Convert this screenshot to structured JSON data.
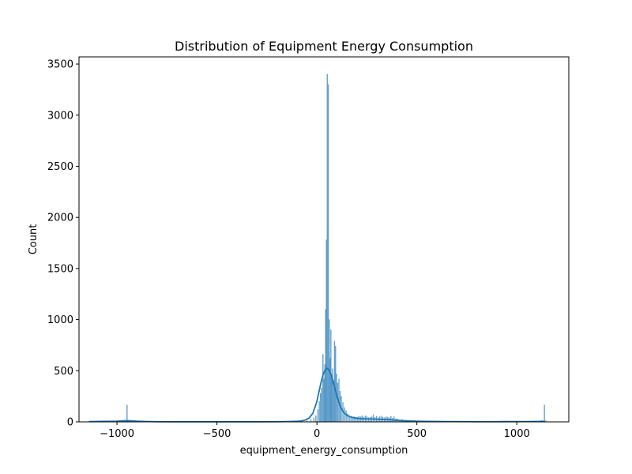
{
  "chart_data": {
    "type": "bar",
    "title": "Distribution of Equipment Energy Consumption",
    "xlabel": "equipment_energy_consumption",
    "ylabel": "Count",
    "xlim": [
      -1190,
      1260
    ],
    "ylim": [
      0,
      3570
    ],
    "x_ticks": [
      -1000,
      -500,
      0,
      500,
      1000
    ],
    "x_tick_labels": [
      "−1000",
      "−500",
      "0",
      "500",
      "1000"
    ],
    "y_ticks": [
      0,
      500,
      1000,
      1500,
      2000,
      2500,
      3000,
      3500
    ],
    "y_tick_labels": [
      "0",
      "500",
      "1000",
      "1500",
      "2000",
      "2500",
      "3000",
      "3500"
    ],
    "grid": false,
    "bin_width": 3.5,
    "colors": {
      "bars": "#1f77b4",
      "kde": "#1f77b4"
    },
    "bars": [
      {
        "x": -1140,
        "count": 3
      },
      {
        "x": -1100,
        "count": 2
      },
      {
        "x": -1060,
        "count": 3
      },
      {
        "x": -1020,
        "count": 4
      },
      {
        "x": -990,
        "count": 6
      },
      {
        "x": -970,
        "count": 10
      },
      {
        "x": -955,
        "count": 15
      },
      {
        "x": -950,
        "count": 165
      },
      {
        "x": -940,
        "count": 14
      },
      {
        "x": -930,
        "count": 10
      },
      {
        "x": -920,
        "count": 8
      },
      {
        "x": -905,
        "count": 6
      },
      {
        "x": -880,
        "count": 3
      },
      {
        "x": -850,
        "count": 2
      },
      {
        "x": -800,
        "count": 2
      },
      {
        "x": -700,
        "count": 1
      },
      {
        "x": -600,
        "count": 1
      },
      {
        "x": -500,
        "count": 1
      },
      {
        "x": -400,
        "count": 1
      },
      {
        "x": -300,
        "count": 1
      },
      {
        "x": -200,
        "count": 2
      },
      {
        "x": -120,
        "count": 3
      },
      {
        "x": -80,
        "count": 5
      },
      {
        "x": -50,
        "count": 10
      },
      {
        "x": -30,
        "count": 25
      },
      {
        "x": -15,
        "count": 40
      },
      {
        "x": -5,
        "count": 60
      },
      {
        "x": 5,
        "count": 120
      },
      {
        "x": 12,
        "count": 200
      },
      {
        "x": 18,
        "count": 280
      },
      {
        "x": 24,
        "count": 330
      },
      {
        "x": 30,
        "count": 660
      },
      {
        "x": 36,
        "count": 420
      },
      {
        "x": 40,
        "count": 560
      },
      {
        "x": 44,
        "count": 1100
      },
      {
        "x": 48,
        "count": 1780
      },
      {
        "x": 52,
        "count": 3400
      },
      {
        "x": 57,
        "count": 3300
      },
      {
        "x": 62,
        "count": 1000
      },
      {
        "x": 66,
        "count": 620
      },
      {
        "x": 70,
        "count": 900
      },
      {
        "x": 74,
        "count": 450
      },
      {
        "x": 78,
        "count": 520
      },
      {
        "x": 84,
        "count": 400
      },
      {
        "x": 88,
        "count": 790
      },
      {
        "x": 93,
        "count": 740
      },
      {
        "x": 98,
        "count": 470
      },
      {
        "x": 104,
        "count": 380
      },
      {
        "x": 110,
        "count": 420
      },
      {
        "x": 116,
        "count": 300
      },
      {
        "x": 122,
        "count": 250
      },
      {
        "x": 130,
        "count": 190
      },
      {
        "x": 138,
        "count": 140
      },
      {
        "x": 146,
        "count": 110
      },
      {
        "x": 154,
        "count": 80
      },
      {
        "x": 162,
        "count": 60
      },
      {
        "x": 170,
        "count": 55
      },
      {
        "x": 178,
        "count": 45
      },
      {
        "x": 186,
        "count": 50
      },
      {
        "x": 194,
        "count": 40
      },
      {
        "x": 202,
        "count": 45
      },
      {
        "x": 210,
        "count": 55
      },
      {
        "x": 218,
        "count": 50
      },
      {
        "x": 226,
        "count": 60
      },
      {
        "x": 234,
        "count": 45
      },
      {
        "x": 242,
        "count": 60
      },
      {
        "x": 250,
        "count": 55
      },
      {
        "x": 258,
        "count": 40
      },
      {
        "x": 266,
        "count": 45
      },
      {
        "x": 274,
        "count": 50
      },
      {
        "x": 282,
        "count": 70
      },
      {
        "x": 290,
        "count": 45
      },
      {
        "x": 298,
        "count": 55
      },
      {
        "x": 306,
        "count": 40
      },
      {
        "x": 314,
        "count": 50
      },
      {
        "x": 322,
        "count": 55
      },
      {
        "x": 330,
        "count": 45
      },
      {
        "x": 338,
        "count": 40
      },
      {
        "x": 346,
        "count": 50
      },
      {
        "x": 354,
        "count": 45
      },
      {
        "x": 362,
        "count": 40
      },
      {
        "x": 370,
        "count": 55
      },
      {
        "x": 378,
        "count": 35
      },
      {
        "x": 386,
        "count": 50
      },
      {
        "x": 394,
        "count": 30
      },
      {
        "x": 402,
        "count": 30
      },
      {
        "x": 410,
        "count": 20
      },
      {
        "x": 418,
        "count": 15
      },
      {
        "x": 426,
        "count": 25
      },
      {
        "x": 434,
        "count": 15
      },
      {
        "x": 445,
        "count": 10
      },
      {
        "x": 460,
        "count": 12
      },
      {
        "x": 480,
        "count": 8
      },
      {
        "x": 500,
        "count": 7
      },
      {
        "x": 530,
        "count": 6
      },
      {
        "x": 560,
        "count": 8
      },
      {
        "x": 590,
        "count": 10
      },
      {
        "x": 620,
        "count": 6
      },
      {
        "x": 650,
        "count": 5
      },
      {
        "x": 700,
        "count": 4
      },
      {
        "x": 750,
        "count": 3
      },
      {
        "x": 800,
        "count": 3
      },
      {
        "x": 850,
        "count": 3
      },
      {
        "x": 900,
        "count": 4
      },
      {
        "x": 950,
        "count": 5
      },
      {
        "x": 1000,
        "count": 5
      },
      {
        "x": 1050,
        "count": 6
      },
      {
        "x": 1090,
        "count": 8
      },
      {
        "x": 1110,
        "count": 10
      },
      {
        "x": 1125,
        "count": 14
      },
      {
        "x": 1138,
        "count": 165
      },
      {
        "x": 1145,
        "count": 12
      }
    ],
    "kde": {
      "x": [
        -1140,
        -1100,
        -1050,
        -1000,
        -970,
        -950,
        -930,
        -900,
        -860,
        -800,
        -700,
        -600,
        -500,
        -400,
        -300,
        -200,
        -150,
        -100,
        -80,
        -60,
        -40,
        -20,
        0,
        10,
        20,
        30,
        40,
        50,
        60,
        70,
        80,
        90,
        100,
        110,
        120,
        130,
        140,
        150,
        170,
        190,
        210,
        240,
        270,
        300,
        330,
        360,
        390,
        420,
        450,
        500,
        550,
        600,
        650,
        700,
        800,
        900,
        1000,
        1050,
        1100,
        1120,
        1140
      ],
      "y": [
        3,
        4,
        5,
        7,
        10,
        12,
        10,
        7,
        4,
        2,
        1,
        1,
        1,
        1,
        1,
        2,
        3,
        6,
        9,
        16,
        35,
        85,
        200,
        290,
        380,
        455,
        505,
        525,
        510,
        470,
        405,
        330,
        255,
        190,
        140,
        104,
        80,
        64,
        47,
        38,
        33,
        30,
        28,
        26,
        24,
        21,
        17,
        13,
        10,
        7,
        5,
        4,
        3,
        3,
        2,
        2,
        3,
        3,
        4,
        5,
        5
      ]
    }
  }
}
